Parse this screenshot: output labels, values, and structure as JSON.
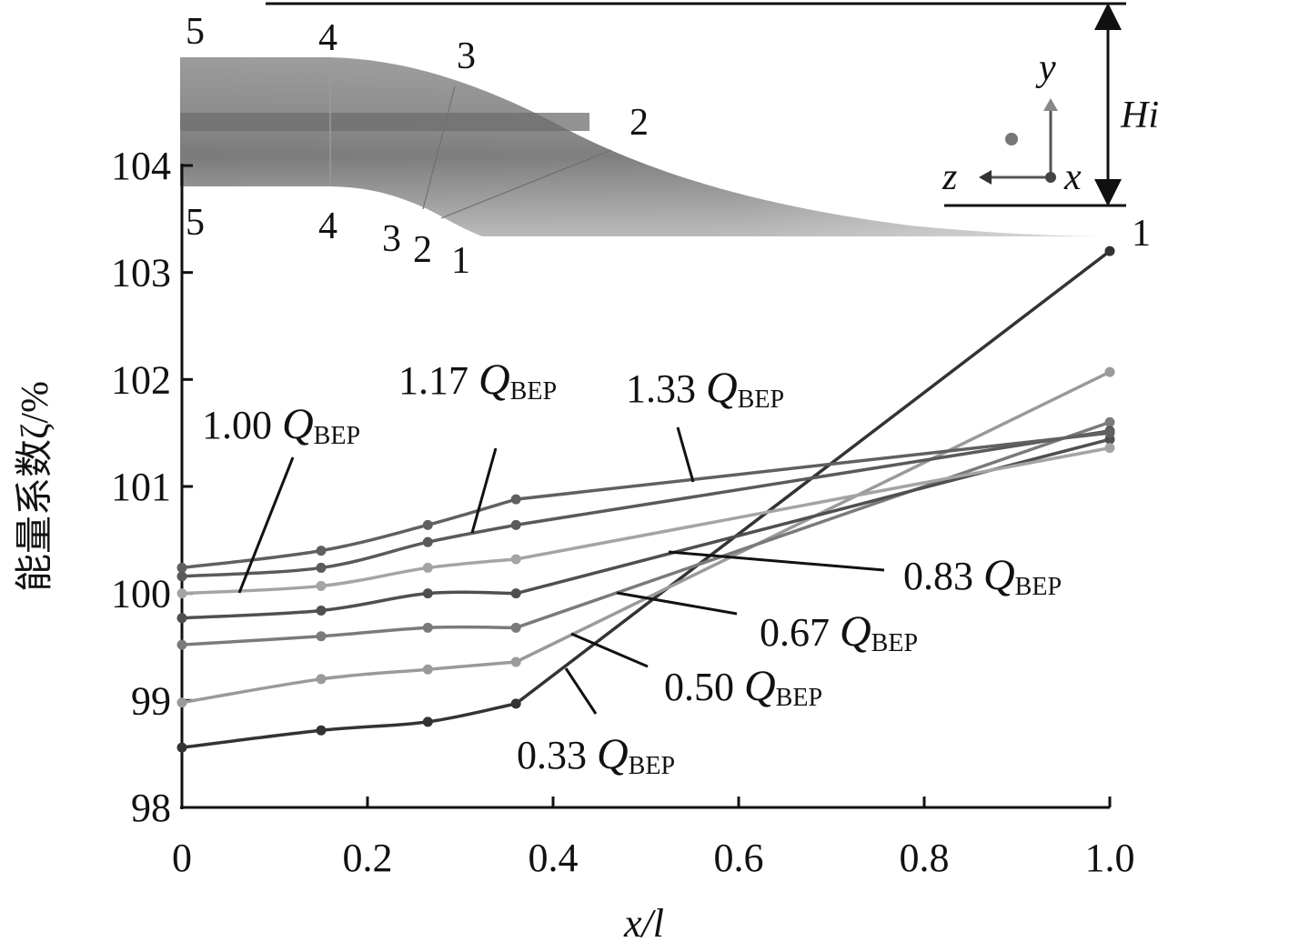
{
  "chart_data": {
    "type": "line",
    "title": "",
    "xlabel": "x/l",
    "ylabel": "能量系数ζ/%",
    "xlim": [
      0,
      1.0
    ],
    "ylim": [
      98,
      104
    ],
    "xticks": [
      "0",
      "0.2",
      "0.4",
      "0.6",
      "0.8",
      "1.0"
    ],
    "yticks": [
      "98",
      "99",
      "100",
      "101",
      "102",
      "103",
      "104"
    ],
    "x": [
      0,
      0.15,
      0.265,
      0.36,
      1.0
    ],
    "series": [
      {
        "name": "0.33 Q_BEP",
        "label": "0.33",
        "color": "#333333",
        "values": [
          98.56,
          98.72,
          98.8,
          98.97,
          103.2
        ]
      },
      {
        "name": "0.50 Q_BEP",
        "label": "0.50",
        "color": "#9a9a9a",
        "values": [
          98.98,
          99.2,
          99.29,
          99.36,
          102.07
        ]
      },
      {
        "name": "0.67 Q_BEP",
        "label": "0.67",
        "color": "#7a7a7a",
        "values": [
          99.52,
          99.6,
          99.68,
          99.68,
          101.6
        ]
      },
      {
        "name": "0.83 Q_BEP",
        "label": "0.83",
        "color": "#4f4f4f",
        "values": [
          99.77,
          99.84,
          100.0,
          100.0,
          101.44
        ]
      },
      {
        "name": "1.00 Q_BEP",
        "label": "1.00",
        "color": "#a4a4a4",
        "values": [
          100.0,
          100.07,
          100.24,
          100.32,
          101.36
        ]
      },
      {
        "name": "1.17 Q_BEP",
        "label": "1.17",
        "color": "#5a5a5a",
        "values": [
          100.16,
          100.24,
          100.48,
          100.64,
          101.52
        ]
      },
      {
        "name": "1.33 Q_BEP",
        "label": "1.33",
        "color": "#606060",
        "values": [
          100.24,
          100.4,
          100.64,
          100.88,
          101.5
        ]
      }
    ],
    "annotation_q_symbol": "Q",
    "annotation_q_subscript": "BEP",
    "inset": {
      "description_labels": {
        "stations_top": [
          "5",
          "4",
          "3",
          "2"
        ],
        "stations_bottom": [
          "5",
          "4",
          "3",
          "2",
          "1"
        ],
        "station_outlet": "1",
        "height_label": "Hi",
        "axis_y": "y",
        "axis_z": "z",
        "axis_x": "x"
      }
    }
  }
}
